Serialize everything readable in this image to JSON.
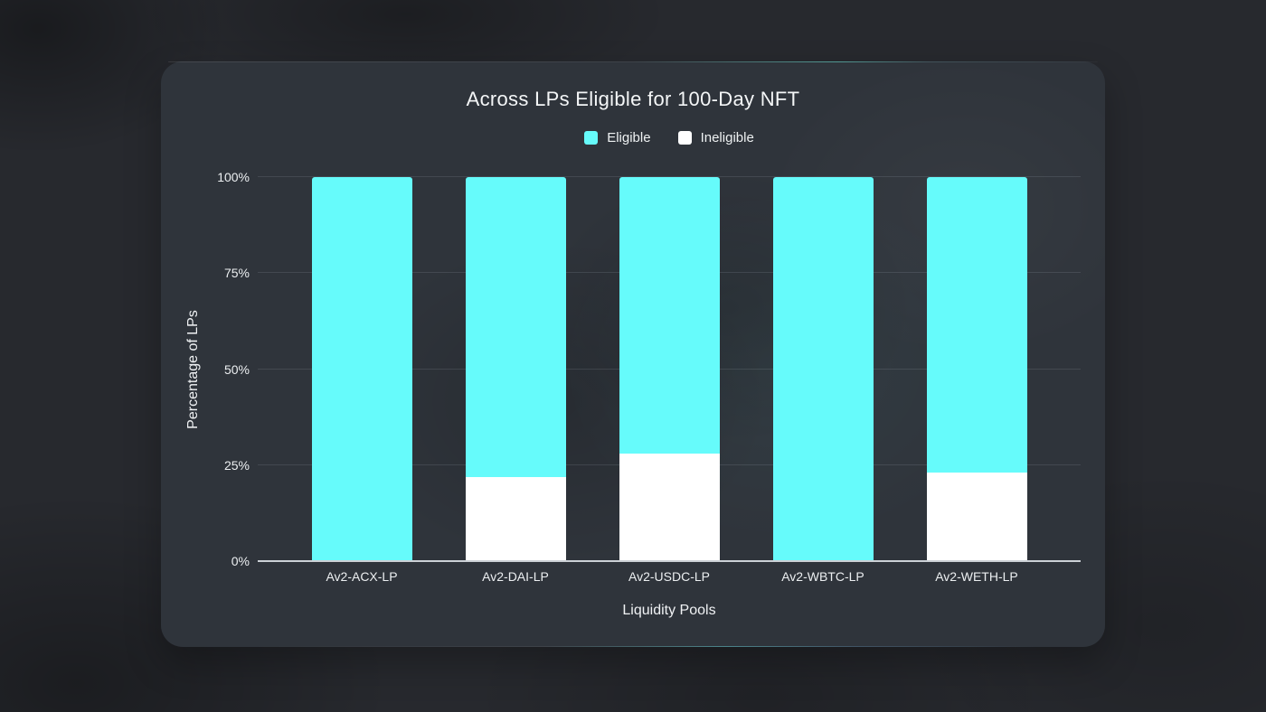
{
  "card": {
    "name": "lp-eligibility-chart-card"
  },
  "chart_data": {
    "type": "bar",
    "stacked": true,
    "title": "Across LPs Eligible for 100-Day NFT",
    "xlabel": "Liquidity Pools",
    "ylabel": "Percentage of LPs",
    "categories": [
      "Av2-ACX-LP",
      "Av2-DAI-LP",
      "Av2-USDC-LP",
      "Av2-WBTC-LP",
      "Av2-WETH-LP"
    ],
    "series": [
      {
        "name": "Eligible",
        "color": "#66fbfb",
        "values": [
          100,
          78,
          72,
          100,
          77
        ]
      },
      {
        "name": "Ineligible",
        "color": "#ffffff",
        "values": [
          0,
          22,
          28,
          0,
          23
        ]
      }
    ],
    "ylim": [
      0,
      100
    ],
    "yticks": [
      {
        "value": 0,
        "label": "0%"
      },
      {
        "value": 25,
        "label": "25%"
      },
      {
        "value": 50,
        "label": "50%"
      },
      {
        "value": 75,
        "label": "75%"
      },
      {
        "value": 100,
        "label": "100%"
      }
    ],
    "grid": true,
    "legend_position": "top"
  },
  "legend": [
    {
      "label": "Eligible",
      "color": "#66fbfb"
    },
    {
      "label": "Ineligible",
      "color": "#ffffff"
    }
  ],
  "colors": {
    "card_background": "#2f343b",
    "page_background": "#27292e",
    "axis_line": "#ccd1d6",
    "gridline": "rgba(190,200,210,0.14)",
    "text": "#f2f4f5",
    "accent_cyan": "#66fbfb"
  }
}
